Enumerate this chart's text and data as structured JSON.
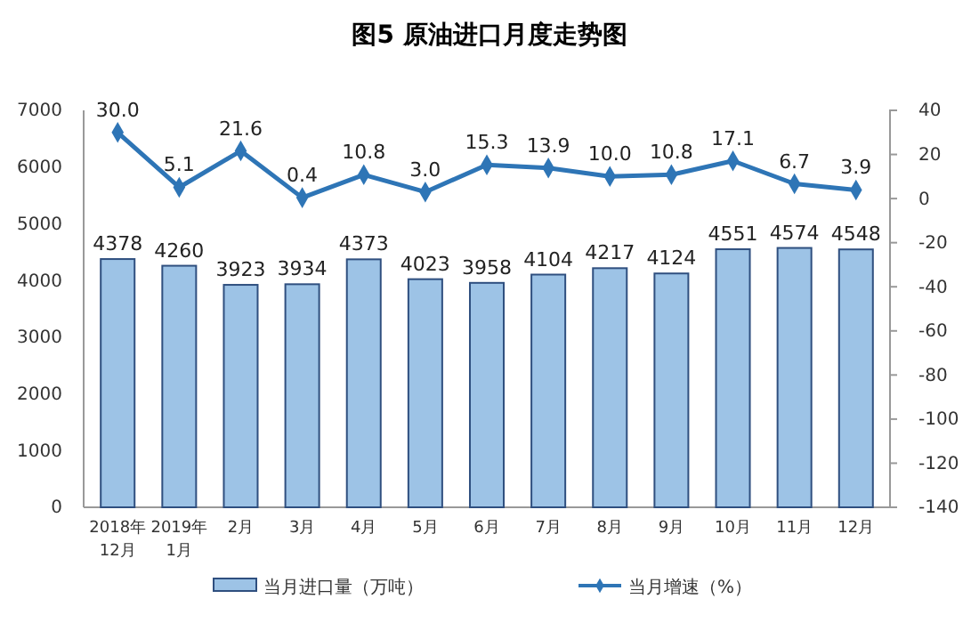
{
  "chart_data": {
    "type": "bar",
    "title": "图5  原油进口月度走势图",
    "categories": [
      "2018年\n12月",
      "2019年\n1月",
      "2月",
      "3月",
      "4月",
      "5月",
      "6月",
      "7月",
      "8月",
      "9月",
      "10月",
      "11月",
      "12月"
    ],
    "series": [
      {
        "name": "当月进口量（万吨）",
        "color": "#9dc3e6",
        "values": [
          4378,
          4260,
          3923,
          3934,
          4373,
          4023,
          3958,
          4104,
          4217,
          4124,
          4551,
          4574,
          4548
        ]
      },
      {
        "name": "当月增速（%）",
        "type": "line",
        "axis": "y2",
        "color": "#2e75b6",
        "marker": "diamond",
        "values": [
          30.0,
          5.1,
          21.6,
          0.4,
          10.8,
          3.0,
          15.3,
          13.9,
          10.0,
          10.8,
          17.1,
          6.7,
          3.9
        ],
        "value_labels": [
          "30.0",
          "5.1",
          "21.6",
          "0.4",
          "10.8",
          "3.0",
          "15.3",
          "13.9",
          "10.0",
          "10.8",
          "17.1",
          "6.7",
          "3.9"
        ]
      }
    ],
    "data_labels": true,
    "ylim": [
      0,
      7000
    ],
    "yticks": [
      0,
      1000,
      2000,
      3000,
      4000,
      5000,
      6000,
      7000
    ],
    "y2lim": [
      -140,
      40
    ],
    "y2ticks": [
      -140,
      -120,
      -100,
      -80,
      -60,
      -40,
      -20,
      0,
      20,
      40
    ],
    "legend": "bottom"
  }
}
